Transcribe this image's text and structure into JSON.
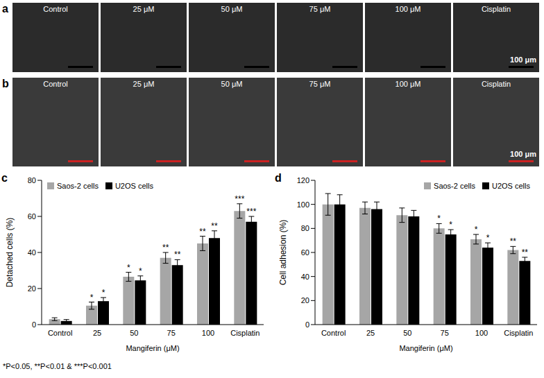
{
  "image_panels": [
    {
      "panel": "a",
      "labels": [
        "Control",
        "25 μM",
        "50 μM",
        "75 μM",
        "100 μM",
        "Cisplatin"
      ],
      "scale_bar_label": "100 μm",
      "scale_bar_color": "#000000"
    },
    {
      "panel": "b",
      "labels": [
        "Control",
        "25 μM",
        "50 μM",
        "75 μM",
        "100 μM",
        "Cisplatin"
      ],
      "scale_bar_label": "100 μm",
      "scale_bar_color": "#cc2222"
    }
  ],
  "chart_data": [
    {
      "panel": "c",
      "type": "bar",
      "x_label": "Mangiferin (μM)",
      "y_label": "Detached cells (%)",
      "categories": [
        "Control",
        "25",
        "50",
        "75",
        "100",
        "Cisplatin"
      ],
      "series": [
        {
          "name": "Saos-2 cells",
          "color": "#a6a6a6",
          "values": [
            3,
            10.5,
            26.5,
            37,
            45,
            63
          ],
          "errors": [
            0.8,
            2,
            2.5,
            3,
            4,
            4
          ],
          "significance": [
            null,
            "*",
            "*",
            "**",
            "**",
            "***"
          ]
        },
        {
          "name": "U2OS cells",
          "color": "#000000",
          "values": [
            2,
            13,
            24.5,
            33,
            48,
            57
          ],
          "errors": [
            0.8,
            2,
            2.5,
            3,
            4,
            3
          ],
          "significance": [
            null,
            "*",
            "*",
            "**",
            "**",
            "***"
          ]
        }
      ],
      "ylim": [
        0,
        80
      ],
      "yticks": [
        0,
        20,
        40,
        60,
        80
      ],
      "legend": "upper left"
    },
    {
      "panel": "d",
      "type": "bar",
      "x_label": "Mangiferin (μM)",
      "y_label": "Cell adhesion (%)",
      "categories": [
        "Control",
        "25",
        "50",
        "75",
        "100",
        "Cisplatin"
      ],
      "series": [
        {
          "name": "Saos-2 cells",
          "color": "#a6a6a6",
          "values": [
            100,
            97,
            91,
            80,
            71,
            62
          ],
          "errors": [
            9,
            5,
            6,
            4,
            4,
            3
          ],
          "significance": [
            null,
            null,
            null,
            "*",
            "*",
            "**"
          ]
        },
        {
          "name": "U2OS cells",
          "color": "#000000",
          "values": [
            100,
            96,
            90,
            75,
            64,
            53
          ],
          "errors": [
            8,
            6,
            5,
            4,
            4,
            3
          ],
          "significance": [
            null,
            null,
            null,
            "*",
            "*",
            "**"
          ]
        }
      ],
      "ylim": [
        0,
        120
      ],
      "yticks": [
        0,
        20,
        40,
        60,
        80,
        100,
        120
      ],
      "legend": "upper right"
    }
  ],
  "footnote": "*P<0.05, **P<0.01 & ***P<0.001"
}
